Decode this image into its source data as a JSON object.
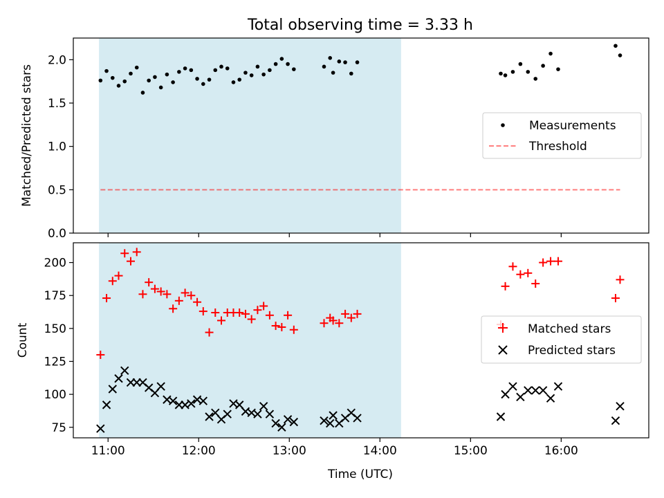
{
  "title": "Total observing time = 3.33 h",
  "colors": {
    "span_fill": "#add8e6",
    "measurement": "#000000",
    "threshold": "#ff0000",
    "matched": "#ff0000",
    "predicted": "#000000"
  },
  "chart_data": [
    {
      "type": "scatter",
      "ylabel": "Matched/Predicted stars",
      "ylim": [
        0,
        2.25
      ],
      "xlim": [
        "10:37",
        "16:58"
      ],
      "x_tick_labels": [],
      "y_tick_labels": [
        "0.0",
        "0.5",
        "1.0",
        "1.5",
        "2.0"
      ],
      "y_ticks": [
        0,
        0.5,
        1.0,
        1.5,
        2.0
      ],
      "shaded_span": [
        "10:54",
        "14:14"
      ],
      "grid": false,
      "legend": {
        "placement": "center-right",
        "entries": [
          "Measurements",
          "Threshold"
        ]
      },
      "series": [
        {
          "name": "Measurements",
          "marker": "dot",
          "points": [
            [
              "10:55",
              1.76
            ],
            [
              "10:59",
              1.87
            ],
            [
              "11:03",
              1.79
            ],
            [
              "11:07",
              1.7
            ],
            [
              "11:11",
              1.75
            ],
            [
              "11:15",
              1.84
            ],
            [
              "11:19",
              1.91
            ],
            [
              "11:23",
              1.62
            ],
            [
              "11:27",
              1.76
            ],
            [
              "11:31",
              1.8
            ],
            [
              "11:35",
              1.68
            ],
            [
              "11:39",
              1.83
            ],
            [
              "11:43",
              1.74
            ],
            [
              "11:47",
              1.86
            ],
            [
              "11:51",
              1.9
            ],
            [
              "11:55",
              1.88
            ],
            [
              "11:59",
              1.78
            ],
            [
              "12:03",
              1.72
            ],
            [
              "12:07",
              1.77
            ],
            [
              "12:11",
              1.88
            ],
            [
              "12:15",
              1.92
            ],
            [
              "12:19",
              1.9
            ],
            [
              "12:23",
              1.74
            ],
            [
              "12:27",
              1.77
            ],
            [
              "12:31",
              1.85
            ],
            [
              "12:35",
              1.82
            ],
            [
              "12:39",
              1.92
            ],
            [
              "12:43",
              1.83
            ],
            [
              "12:47",
              1.88
            ],
            [
              "12:51",
              1.95
            ],
            [
              "12:55",
              2.01
            ],
            [
              "12:59",
              1.95
            ],
            [
              "13:03",
              1.89
            ],
            [
              "13:23",
              1.92
            ],
            [
              "13:27",
              2.02
            ],
            [
              "13:29",
              1.85
            ],
            [
              "13:33",
              1.98
            ],
            [
              "13:37",
              1.97
            ],
            [
              "13:41",
              1.84
            ],
            [
              "13:45",
              1.97
            ],
            [
              "15:20",
              1.84
            ],
            [
              "15:23",
              1.82
            ],
            [
              "15:28",
              1.86
            ],
            [
              "15:33",
              1.95
            ],
            [
              "15:38",
              1.86
            ],
            [
              "15:43",
              1.78
            ],
            [
              "15:48",
              1.93
            ],
            [
              "15:53",
              2.07
            ],
            [
              "15:58",
              1.89
            ],
            [
              "16:36",
              2.16
            ],
            [
              "16:39",
              2.05
            ]
          ]
        },
        {
          "name": "Threshold",
          "style": "dashed-line",
          "points": [
            [
              "10:55",
              0.5
            ],
            [
              "16:39",
              0.5
            ]
          ]
        }
      ]
    },
    {
      "type": "scatter",
      "xlabel": "Time (UTC)",
      "ylabel": "Count",
      "ylim": [
        67,
        215
      ],
      "xlim": [
        "10:37",
        "16:58"
      ],
      "x_tick_labels": [
        "11:00",
        "12:00",
        "13:00",
        "14:00",
        "15:00",
        "16:00"
      ],
      "x_ticks": [
        "11:00",
        "12:00",
        "13:00",
        "14:00",
        "15:00",
        "16:00"
      ],
      "y_tick_labels": [
        "75",
        "100",
        "125",
        "150",
        "175",
        "200"
      ],
      "y_ticks": [
        75,
        100,
        125,
        150,
        175,
        200
      ],
      "shaded_span": [
        "10:54",
        "14:14"
      ],
      "grid": false,
      "legend": {
        "placement": "center-right",
        "entries": [
          "Matched stars",
          "Predicted stars"
        ]
      },
      "series": [
        {
          "name": "Matched stars",
          "marker": "plus",
          "points": [
            [
              "10:55",
              130
            ],
            [
              "10:59",
              173
            ],
            [
              "11:03",
              186
            ],
            [
              "11:07",
              190
            ],
            [
              "11:11",
              207
            ],
            [
              "11:15",
              201
            ],
            [
              "11:19",
              208
            ],
            [
              "11:23",
              176
            ],
            [
              "11:27",
              185
            ],
            [
              "11:31",
              180
            ],
            [
              "11:35",
              178
            ],
            [
              "11:39",
              176
            ],
            [
              "11:43",
              165
            ],
            [
              "11:47",
              171
            ],
            [
              "11:51",
              177
            ],
            [
              "11:55",
              175
            ],
            [
              "11:59",
              170
            ],
            [
              "12:03",
              163
            ],
            [
              "12:07",
              147
            ],
            [
              "12:11",
              162
            ],
            [
              "12:15",
              156
            ],
            [
              "12:19",
              162
            ],
            [
              "12:23",
              162
            ],
            [
              "12:27",
              162
            ],
            [
              "12:31",
              161
            ],
            [
              "12:35",
              157
            ],
            [
              "12:39",
              164
            ],
            [
              "12:43",
              167
            ],
            [
              "12:47",
              160
            ],
            [
              "12:51",
              152
            ],
            [
              "12:55",
              151
            ],
            [
              "12:59",
              160
            ],
            [
              "13:03",
              149
            ],
            [
              "13:23",
              154
            ],
            [
              "13:27",
              158
            ],
            [
              "13:29",
              156
            ],
            [
              "13:33",
              154
            ],
            [
              "13:37",
              161
            ],
            [
              "13:41",
              158
            ],
            [
              "13:45",
              161
            ],
            [
              "15:20",
              153
            ],
            [
              "15:23",
              182
            ],
            [
              "15:28",
              197
            ],
            [
              "15:33",
              191
            ],
            [
              "15:38",
              192
            ],
            [
              "15:43",
              184
            ],
            [
              "15:48",
              200
            ],
            [
              "15:53",
              201
            ],
            [
              "15:58",
              201
            ],
            [
              "16:36",
              173
            ],
            [
              "16:39",
              187
            ]
          ]
        },
        {
          "name": "Predicted stars",
          "marker": "x",
          "points": [
            [
              "10:55",
              74
            ],
            [
              "10:59",
              92
            ],
            [
              "11:03",
              104
            ],
            [
              "11:07",
              112
            ],
            [
              "11:11",
              118
            ],
            [
              "11:15",
              109
            ],
            [
              "11:19",
              109
            ],
            [
              "11:23",
              109
            ],
            [
              "11:27",
              105
            ],
            [
              "11:31",
              101
            ],
            [
              "11:35",
              106
            ],
            [
              "11:39",
              96
            ],
            [
              "11:43",
              95
            ],
            [
              "11:47",
              92
            ],
            [
              "11:51",
              92
            ],
            [
              "11:55",
              93
            ],
            [
              "11:59",
              96
            ],
            [
              "12:03",
              95
            ],
            [
              "12:07",
              83
            ],
            [
              "12:11",
              86
            ],
            [
              "12:15",
              81
            ],
            [
              "12:19",
              85
            ],
            [
              "12:23",
              93
            ],
            [
              "12:27",
              92
            ],
            [
              "12:31",
              87
            ],
            [
              "12:35",
              86
            ],
            [
              "12:39",
              85
            ],
            [
              "12:43",
              91
            ],
            [
              "12:47",
              85
            ],
            [
              "12:51",
              78
            ],
            [
              "12:55",
              75
            ],
            [
              "12:59",
              81
            ],
            [
              "13:03",
              79
            ],
            [
              "13:23",
              80
            ],
            [
              "13:27",
              78
            ],
            [
              "13:29",
              84
            ],
            [
              "13:33",
              78
            ],
            [
              "13:37",
              82
            ],
            [
              "13:41",
              86
            ],
            [
              "13:45",
              82
            ],
            [
              "15:20",
              83
            ],
            [
              "15:23",
              100
            ],
            [
              "15:28",
              106
            ],
            [
              "15:33",
              98
            ],
            [
              "15:38",
              103
            ],
            [
              "15:43",
              103
            ],
            [
              "15:48",
              103
            ],
            [
              "15:53",
              97
            ],
            [
              "15:58",
              106
            ],
            [
              "16:36",
              80
            ],
            [
              "16:39",
              91
            ]
          ]
        }
      ]
    }
  ]
}
